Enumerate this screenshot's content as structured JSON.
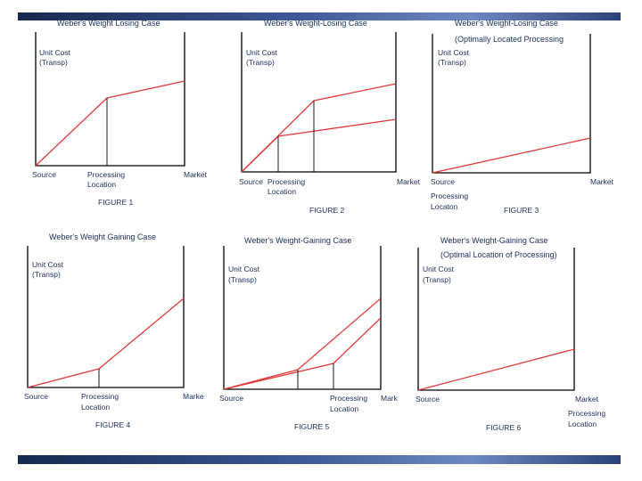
{
  "figures": [
    {
      "title": "Weber's Weight Losing Case",
      "subtitle": "",
      "y_label": [
        "Unit Cost",
        "(Transp)"
      ],
      "source": "Source",
      "processing": [
        "Processing",
        "Location"
      ],
      "market": "Market",
      "caption": "FIGURE 1"
    },
    {
      "title": "Weber's Weight-Losing Case",
      "subtitle": "",
      "y_label": [
        "Unit Cost",
        "(Transp)"
      ],
      "source": "Source",
      "processing": [
        "Processing",
        "Location"
      ],
      "market": "Market",
      "caption": "FIGURE 2"
    },
    {
      "title": "Weber's Weight-Losing Case",
      "subtitle": "(Optimally Located Processing",
      "y_label": [
        "Unit Cost",
        "(Transp)"
      ],
      "source": "Source",
      "processing": [
        "Processing",
        "Locaton"
      ],
      "market": "Market",
      "caption": "FIGURE 3"
    },
    {
      "title": "Weber's Weight Gaining Case",
      "subtitle": "",
      "y_label": [
        "Unit Cost",
        "(Transp)"
      ],
      "source": "Source",
      "processing": [
        "Processing",
        "Location"
      ],
      "market": "Marke",
      "caption": "FIGURE 4"
    },
    {
      "title": "Weber's Weight-Gaining Case",
      "subtitle": "",
      "y_label": [
        "Unit Cost",
        "(Transp)"
      ],
      "source": "Source",
      "processing": [
        "Processing",
        "Location"
      ],
      "market": "Mark",
      "caption": "FIGURE 5"
    },
    {
      "title": "Weber's Weight-Gaining Case",
      "subtitle": "(Optimal Location of Processing)",
      "y_label": [
        "Unit Cost",
        "(Transp)"
      ],
      "source": "Source",
      "processing": [
        "Processing",
        "Location"
      ],
      "market": "Market",
      "caption": "FIGURE 6"
    }
  ],
  "colors": {
    "cost_line": "#e23a3a",
    "axis": "#000000",
    "text": "#1a2f5c",
    "band": "#2a4277"
  }
}
